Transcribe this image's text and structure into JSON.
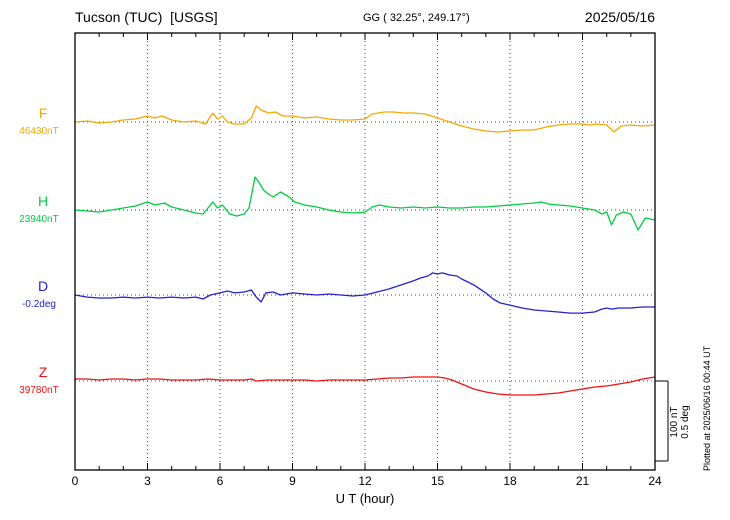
{
  "header": {
    "station": "Tucson (TUC)  [USGS]",
    "coords": "GG ( 32.25°, 249.17°)",
    "date": "2025/05/16"
  },
  "footer": {
    "plotted": "Plotted at 2025/06/16 00:44 UT"
  },
  "scale_bar": {
    "line1": "100 nT",
    "line2": "0.5 deg"
  },
  "chart_data": {
    "type": "line",
    "title": "Tucson (TUC) [USGS] magnetogram 2025/05/16",
    "xlabel": "U T (hour)",
    "x_range": [
      0,
      24
    ],
    "x_ticks": [
      0,
      3,
      6,
      9,
      12,
      15,
      18,
      21,
      24
    ],
    "grid": "dotted vertical gridlines every 3 h; dotted horizontal baseline per trace",
    "legend_position": "left margin, one colored label per trace",
    "scale": {
      "nT_per_division": 100,
      "deg_per_division": 0.5
    },
    "series": [
      {
        "id": "F",
        "label": "F",
        "baseline_label": "46430nT",
        "base": 46430,
        "unit": "nT",
        "color": "#f5a800",
        "points": [
          [
            0,
            0
          ],
          [
            0.5,
            1.3
          ],
          [
            1,
            -1.3
          ],
          [
            1.5,
            0
          ],
          [
            2,
            2.5
          ],
          [
            2.5,
            3.8
          ],
          [
            3,
            7.5
          ],
          [
            3.3,
            5
          ],
          [
            3.6,
            7.5
          ],
          [
            4,
            2.5
          ],
          [
            4.5,
            0
          ],
          [
            5,
            1.3
          ],
          [
            5.4,
            -2.5
          ],
          [
            5.7,
            11.3
          ],
          [
            5.9,
            3.8
          ],
          [
            6.1,
            7.5
          ],
          [
            6.3,
            0
          ],
          [
            6.6,
            -2.5
          ],
          [
            7,
            -2.5
          ],
          [
            7.3,
            5
          ],
          [
            7.5,
            20
          ],
          [
            7.7,
            15
          ],
          [
            8,
            11.3
          ],
          [
            8.3,
            12.5
          ],
          [
            8.6,
            7.5
          ],
          [
            9,
            7.5
          ],
          [
            9.5,
            5
          ],
          [
            10,
            6.3
          ],
          [
            10.5,
            3.8
          ],
          [
            11,
            2.5
          ],
          [
            11.5,
            2.5
          ],
          [
            12,
            3.8
          ],
          [
            12.3,
            10
          ],
          [
            12.8,
            12.5
          ],
          [
            13.2,
            12.5
          ],
          [
            13.6,
            11.3
          ],
          [
            14,
            11.3
          ],
          [
            14.5,
            10
          ],
          [
            15,
            5
          ],
          [
            15.5,
            0
          ],
          [
            16,
            -5
          ],
          [
            16.5,
            -8.8
          ],
          [
            17,
            -11.3
          ],
          [
            17.5,
            -12.5
          ],
          [
            18,
            -11.3
          ],
          [
            18.5,
            -10
          ],
          [
            19,
            -10
          ],
          [
            19.5,
            -6.3
          ],
          [
            20,
            -3.8
          ],
          [
            20.5,
            -2.5
          ],
          [
            21,
            -2.5
          ],
          [
            21.3,
            -3.8
          ],
          [
            21.6,
            -2.5
          ],
          [
            22,
            -3.8
          ],
          [
            22.3,
            -12.5
          ],
          [
            22.6,
            -5
          ],
          [
            23,
            -3.8
          ],
          [
            23.5,
            -5
          ],
          [
            24,
            -3.8
          ]
        ]
      },
      {
        "id": "H",
        "label": "H",
        "baseline_label": "23940nT",
        "base": 23940,
        "unit": "nT",
        "color": "#00cc44",
        "points": [
          [
            0,
            0
          ],
          [
            0.5,
            -1.3
          ],
          [
            1,
            -2.5
          ],
          [
            1.5,
            0
          ],
          [
            2,
            2.5
          ],
          [
            2.5,
            5
          ],
          [
            3,
            10
          ],
          [
            3.3,
            6.3
          ],
          [
            3.7,
            8.8
          ],
          [
            4,
            3.8
          ],
          [
            4.5,
            0
          ],
          [
            5,
            -3.8
          ],
          [
            5.3,
            -5
          ],
          [
            5.7,
            10
          ],
          [
            5.9,
            2.5
          ],
          [
            6.1,
            6.3
          ],
          [
            6.4,
            -5
          ],
          [
            6.7,
            -7.5
          ],
          [
            7,
            -5
          ],
          [
            7.2,
            2.5
          ],
          [
            7.45,
            41.3
          ],
          [
            7.6,
            35
          ],
          [
            7.8,
            25
          ],
          [
            8,
            20
          ],
          [
            8.2,
            16.3
          ],
          [
            8.5,
            22.5
          ],
          [
            8.8,
            17.5
          ],
          [
            9.1,
            10
          ],
          [
            9.5,
            6.3
          ],
          [
            10,
            3.8
          ],
          [
            10.5,
            0
          ],
          [
            11,
            -2.5
          ],
          [
            11.5,
            -3.8
          ],
          [
            12,
            -2.5
          ],
          [
            12.3,
            3.8
          ],
          [
            12.6,
            6.3
          ],
          [
            13,
            3.8
          ],
          [
            13.5,
            2.5
          ],
          [
            14,
            3.8
          ],
          [
            14.5,
            2.5
          ],
          [
            15,
            3.8
          ],
          [
            15.5,
            2.5
          ],
          [
            16,
            2.5
          ],
          [
            16.5,
            3.8
          ],
          [
            17,
            3.8
          ],
          [
            17.5,
            5
          ],
          [
            18,
            6.3
          ],
          [
            18.5,
            7.5
          ],
          [
            19,
            8.8
          ],
          [
            19.3,
            10
          ],
          [
            19.6,
            7.5
          ],
          [
            20,
            6.3
          ],
          [
            20.5,
            5
          ],
          [
            21,
            2.5
          ],
          [
            21.5,
            0
          ],
          [
            21.8,
            -5
          ],
          [
            22,
            -2.5
          ],
          [
            22.2,
            -18.8
          ],
          [
            22.4,
            -6.3
          ],
          [
            22.7,
            -2.5
          ],
          [
            23,
            -5
          ],
          [
            23.3,
            -25
          ],
          [
            23.6,
            -10
          ],
          [
            24,
            -12.5
          ]
        ]
      },
      {
        "id": "D",
        "label": "D",
        "baseline_label": "-0.2deg",
        "base": -0.2,
        "unit": "deg",
        "color": "#2222cc",
        "points": [
          [
            0,
            0
          ],
          [
            0.5,
            -0.013
          ],
          [
            1,
            -0.019
          ],
          [
            1.5,
            -0.019
          ],
          [
            2,
            -0.013
          ],
          [
            2.5,
            -0.019
          ],
          [
            3,
            -0.013
          ],
          [
            3.5,
            -0.019
          ],
          [
            4,
            -0.013
          ],
          [
            4.5,
            -0.019
          ],
          [
            5,
            -0.013
          ],
          [
            5.3,
            -0.025
          ],
          [
            5.6,
            0
          ],
          [
            6,
            0.013
          ],
          [
            6.3,
            0.025
          ],
          [
            6.6,
            0.013
          ],
          [
            7,
            0.019
          ],
          [
            7.3,
            0.031
          ],
          [
            7.5,
            -0.013
          ],
          [
            7.7,
            -0.044
          ],
          [
            7.9,
            0.013
          ],
          [
            8.2,
            0.019
          ],
          [
            8.5,
            0
          ],
          [
            9,
            0.013
          ],
          [
            9.5,
            0.006
          ],
          [
            10,
            0
          ],
          [
            10.5,
            0.006
          ],
          [
            11,
            0
          ],
          [
            11.5,
            -0.006
          ],
          [
            12,
            0
          ],
          [
            12.5,
            0.019
          ],
          [
            13,
            0.038
          ],
          [
            13.5,
            0.063
          ],
          [
            14,
            0.088
          ],
          [
            14.3,
            0.106
          ],
          [
            14.6,
            0.119
          ],
          [
            14.8,
            0.138
          ],
          [
            15,
            0.131
          ],
          [
            15.2,
            0.138
          ],
          [
            15.5,
            0.125
          ],
          [
            15.8,
            0.119
          ],
          [
            16,
            0.1
          ],
          [
            16.5,
            0.063
          ],
          [
            17,
            0.013
          ],
          [
            17.3,
            -0.025
          ],
          [
            17.6,
            -0.05
          ],
          [
            18,
            -0.063
          ],
          [
            18.5,
            -0.081
          ],
          [
            19,
            -0.094
          ],
          [
            19.5,
            -0.1
          ],
          [
            20,
            -0.106
          ],
          [
            20.5,
            -0.113
          ],
          [
            21,
            -0.113
          ],
          [
            21.5,
            -0.106
          ],
          [
            21.8,
            -0.088
          ],
          [
            22,
            -0.081
          ],
          [
            22.2,
            -0.088
          ],
          [
            22.5,
            -0.081
          ],
          [
            23,
            -0.081
          ],
          [
            23.5,
            -0.075
          ],
          [
            24,
            -0.075
          ]
        ]
      },
      {
        "id": "Z",
        "label": "Z",
        "baseline_label": "39780nT",
        "base": 39780,
        "unit": "nT",
        "color": "#ee1111",
        "points": [
          [
            0,
            2.5
          ],
          [
            0.5,
            2.5
          ],
          [
            1,
            1.3
          ],
          [
            1.5,
            2.5
          ],
          [
            2,
            2.5
          ],
          [
            2.5,
            1.3
          ],
          [
            3,
            2.5
          ],
          [
            3.5,
            2.5
          ],
          [
            4,
            1.3
          ],
          [
            4.5,
            1.3
          ],
          [
            5,
            1.3
          ],
          [
            5.5,
            2.5
          ],
          [
            6,
            1.3
          ],
          [
            6.5,
            1.3
          ],
          [
            7,
            1.3
          ],
          [
            7.3,
            2.5
          ],
          [
            7.5,
            0
          ],
          [
            8,
            1.3
          ],
          [
            8.5,
            1.3
          ],
          [
            9,
            1.3
          ],
          [
            9.5,
            1.3
          ],
          [
            10,
            0
          ],
          [
            10.5,
            1.3
          ],
          [
            11,
            1.3
          ],
          [
            11.5,
            1.3
          ],
          [
            12,
            1.3
          ],
          [
            12.5,
            2.5
          ],
          [
            13,
            3.8
          ],
          [
            13.5,
            3.8
          ],
          [
            14,
            5
          ],
          [
            14.5,
            5
          ],
          [
            15,
            5
          ],
          [
            15.3,
            3.8
          ],
          [
            15.6,
            1.3
          ],
          [
            16,
            -3.8
          ],
          [
            16.5,
            -10
          ],
          [
            17,
            -13.8
          ],
          [
            17.5,
            -16.3
          ],
          [
            18,
            -17.5
          ],
          [
            18.5,
            -17.5
          ],
          [
            19,
            -17.5
          ],
          [
            19.5,
            -16.3
          ],
          [
            20,
            -15
          ],
          [
            20.5,
            -12.5
          ],
          [
            21,
            -10
          ],
          [
            21.5,
            -7.5
          ],
          [
            22,
            -6.3
          ],
          [
            22.5,
            -3.8
          ],
          [
            23,
            -1.3
          ],
          [
            23.5,
            2.5
          ],
          [
            24,
            5
          ]
        ]
      }
    ]
  }
}
